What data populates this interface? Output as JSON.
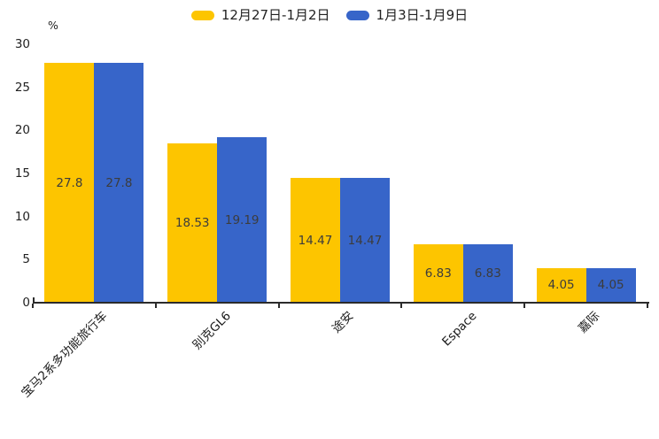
{
  "chart_data": {
    "type": "bar",
    "title": "",
    "xlabel": "",
    "ylabel": "%",
    "ylim": [
      0,
      30
    ],
    "yticks": [
      0,
      5,
      10,
      15,
      20,
      25,
      30
    ],
    "grid": false,
    "legend_position": "top-center",
    "categories": [
      "宝马2系多功能旅行车",
      "别克GL6",
      "途安",
      "Espace",
      "嘉际"
    ],
    "series": [
      {
        "name": "12月27日-1月2日",
        "color": "#FDC500",
        "values": [
          27.8,
          18.53,
          14.47,
          6.83,
          4.05
        ],
        "value_labels": [
          "27.8",
          "18.53",
          "14.47",
          "6.83",
          "4.05"
        ]
      },
      {
        "name": "1月3日-1月9日",
        "color": "#3765C9",
        "values": [
          27.8,
          19.19,
          14.47,
          6.83,
          4.05
        ],
        "value_labels": [
          "27.8",
          "19.19",
          "14.47",
          "6.83",
          "4.05"
        ]
      }
    ],
    "value_label_color": "#3c3c3c",
    "axis_color": "#2b2b2b",
    "text_color": "#222222"
  }
}
